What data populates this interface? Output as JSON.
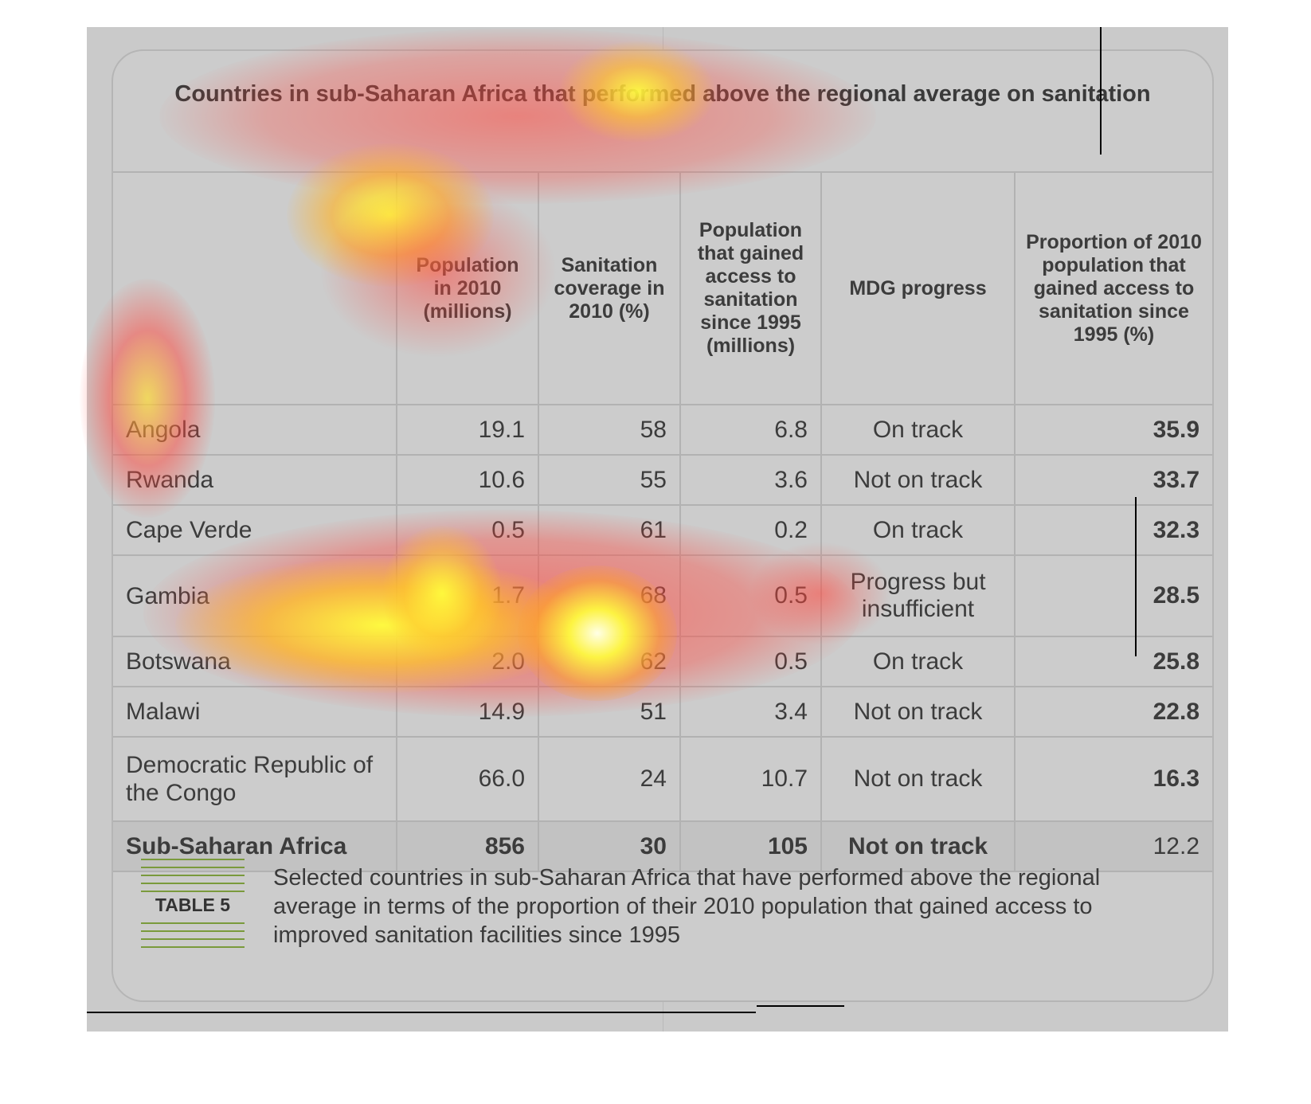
{
  "table": {
    "title": "Countries in sub-Saharan Africa that performed above the regional average on sanitation",
    "headers": [
      "",
      "Population in 2010 (millions)",
      "Sanitation coverage in 2010 (%)",
      "Population that gained access to sanitation since 1995 (millions)",
      "MDG progress",
      "Proportion of 2010 population that gained access to sanitation since 1995 (%)"
    ],
    "rows": [
      {
        "country": "Angola",
        "population": "19.1",
        "coverage": "58",
        "gained": "6.8",
        "mdg": "On track",
        "proportion": "35.9"
      },
      {
        "country": "Rwanda",
        "population": "10.6",
        "coverage": "55",
        "gained": "3.6",
        "mdg": "Not on track",
        "proportion": "33.7"
      },
      {
        "country": "Cape Verde",
        "population": "0.5",
        "coverage": "61",
        "gained": "0.2",
        "mdg": "On track",
        "proportion": "32.3"
      },
      {
        "country": "Gambia",
        "population": "1.7",
        "coverage": "68",
        "gained": "0.5",
        "mdg": "Progress but insufficient",
        "proportion": "28.5"
      },
      {
        "country": "Botswana",
        "population": "2.0",
        "coverage": "62",
        "gained": "0.5",
        "mdg": "On track",
        "proportion": "25.8"
      },
      {
        "country": "Malawi",
        "population": "14.9",
        "coverage": "51",
        "gained": "3.4",
        "mdg": "Not on track",
        "proportion": "22.8"
      },
      {
        "country": "Democratic Republic of the Congo",
        "population": "66.0",
        "coverage": "24",
        "gained": "10.7",
        "mdg": "Not on track",
        "proportion": "16.3"
      }
    ],
    "total": {
      "country": "Sub-Saharan Africa",
      "population": "856",
      "coverage": "30",
      "gained": "105",
      "mdg": "Not on track",
      "proportion": "12.2"
    }
  },
  "caption": {
    "label": "TABLE 5",
    "text": "Selected countries in sub-Saharan Africa that have performed above the regional average in terms of the proportion of their 2010 population that gained access to improved sanitation facilities since 1995"
  },
  "colors": {
    "background": "#cacaca",
    "accent_lines": "#7a9a3c",
    "heatmap_hot": "#ffff30",
    "heatmap_warm": "#ff3c3c"
  }
}
